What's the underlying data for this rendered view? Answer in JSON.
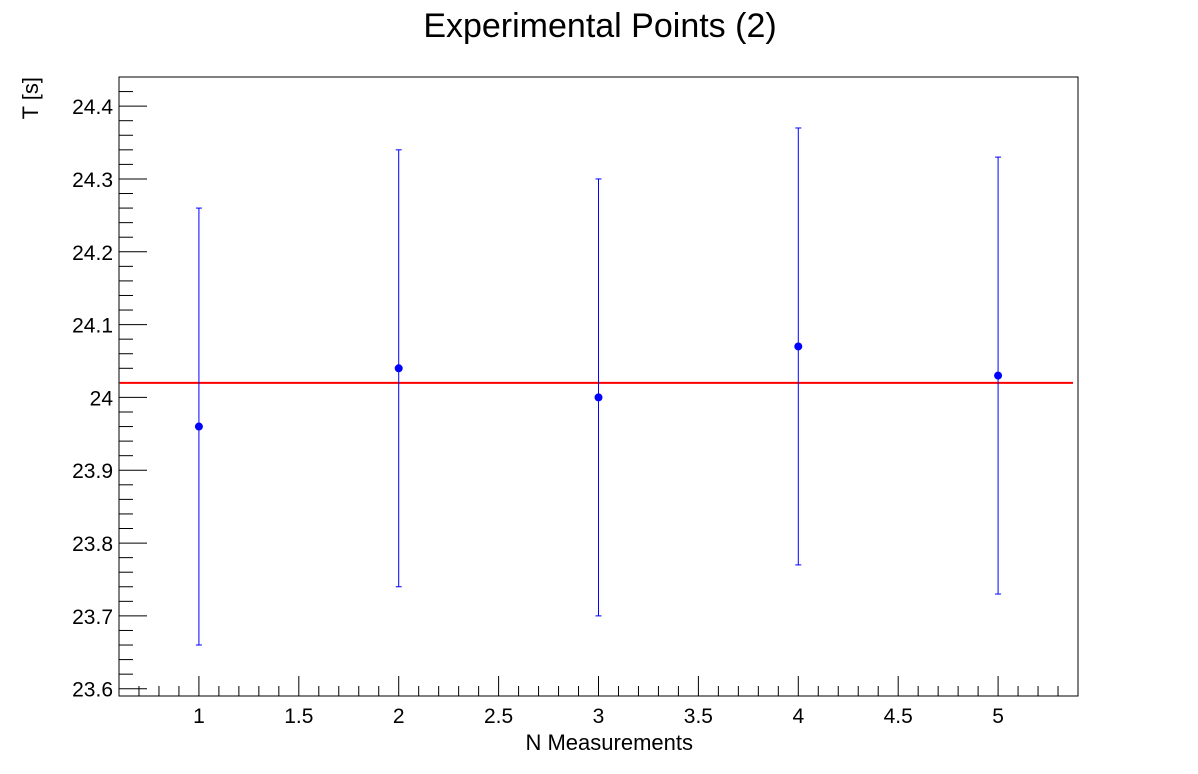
{
  "chart_data": {
    "type": "scatter",
    "title": "Experimental Points (2)",
    "xlabel": "N Measurements",
    "ylabel": "T [s]",
    "xlim": [
      0.6,
      5.4
    ],
    "ylim": [
      23.59,
      24.44
    ],
    "x_ticks": [
      1,
      1.5,
      2,
      2.5,
      3,
      3.5,
      4,
      4.5,
      5
    ],
    "x_tick_labels": [
      "1",
      "1.5",
      "2",
      "2.5",
      "3",
      "3.5",
      "4",
      "4.5",
      "5"
    ],
    "y_ticks": [
      23.6,
      23.7,
      23.8,
      23.9,
      24.0,
      24.1,
      24.2,
      24.3,
      24.4
    ],
    "y_tick_labels": [
      "23.6",
      "23.7",
      "23.8",
      "23.9",
      "24",
      "24.1",
      "24.2",
      "24.3",
      "24.4"
    ],
    "grid": false,
    "series": [
      {
        "x": [
          1,
          2,
          3,
          4,
          5
        ],
        "y": [
          23.96,
          24.04,
          24.0,
          24.07,
          24.03
        ],
        "y_err": [
          0.3,
          0.3,
          0.3,
          0.3,
          0.3
        ],
        "color": "#0000ff"
      }
    ],
    "fit_line": {
      "y": 24.02,
      "x_range": [
        0.6,
        5.4
      ],
      "color": "#ff0000"
    }
  }
}
